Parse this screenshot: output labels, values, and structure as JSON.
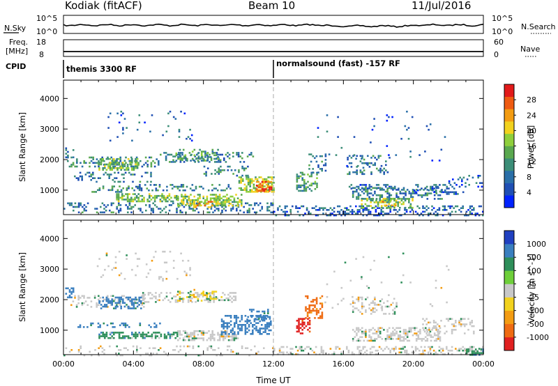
{
  "header": {
    "station": "Kodiak (fitACF)",
    "beam": "Beam 10",
    "date": "11/Jul/2016"
  },
  "nsky_panel": {
    "left_label": "N.Sky",
    "right_label": "N.Search",
    "left_ticks": [
      "10^5",
      "10^0"
    ],
    "right_ticks": [
      "10^5",
      "10^0"
    ]
  },
  "freq_panel": {
    "left_label_1": "Freq.",
    "left_label_2": "[MHz]",
    "right_label": "Nave",
    "left_ticks": [
      "18",
      "8"
    ],
    "right_ticks": [
      "60",
      "0"
    ]
  },
  "cpid": {
    "label": "CPID",
    "segments": [
      {
        "name": "themis 3300 RF",
        "start": "00:00"
      },
      {
        "name": "normalsound (fast) -157 RF",
        "start": "12:00"
      }
    ]
  },
  "colors": {
    "power": [
      "#0022ff",
      "#1f4fb4",
      "#2a6fa8",
      "#3c8e78",
      "#5aa84f",
      "#8fcf3c",
      "#f2d21e",
      "#f39c12",
      "#ef5b12",
      "#e21a1a"
    ],
    "velocity": [
      "#2040c0",
      "#3a7fbf",
      "#2e8f5a",
      "#6ecf3a",
      "#c8c8c8",
      "#f2d21e",
      "#f39c12",
      "#ef6b12",
      "#e02020"
    ]
  },
  "chart_data": [
    {
      "type": "heatmap",
      "name": "Power",
      "ylabel": "Slant Range [km]",
      "yticks": [
        1000,
        2000,
        3000,
        4000
      ],
      "ylim": [
        200,
        4600
      ],
      "xlim": [
        "00:00",
        "24:00"
      ],
      "colorbar_label": "Power [dB]",
      "colorbar_ticks": [
        "4",
        "8",
        "12",
        "16",
        "20",
        "24",
        "28"
      ],
      "colorbar_range": [
        0,
        30
      ],
      "regions": [
        {
          "t": [
            0.0,
            12.0
          ],
          "r": [
            300,
            600
          ],
          "v": 8,
          "density": 0.28
        },
        {
          "t": [
            12.0,
            24.0
          ],
          "r": [
            200,
            500
          ],
          "v": 6,
          "density": 0.35
        },
        {
          "t": [
            0.6,
            5.2
          ],
          "r": [
            1300,
            1600
          ],
          "v": 8,
          "density": 0.18
        },
        {
          "t": [
            0.1,
            0.6
          ],
          "r": [
            2100,
            2400
          ],
          "v": 8,
          "density": 0.45
        },
        {
          "t": [
            0.2,
            5.4
          ],
          "r": [
            1800,
            2100
          ],
          "v": 10,
          "density": 0.35
        },
        {
          "t": [
            2.0,
            4.2
          ],
          "r": [
            1650,
            2050
          ],
          "v": 14,
          "density": 0.5
        },
        {
          "t": [
            5.5,
            10.8
          ],
          "r": [
            1900,
            2250
          ],
          "v": 9,
          "density": 0.3
        },
        {
          "t": [
            6.4,
            8.8
          ],
          "r": [
            1950,
            2350
          ],
          "v": 12,
          "density": 0.38
        },
        {
          "t": [
            8.0,
            10.5
          ],
          "r": [
            1500,
            1800
          ],
          "v": 9,
          "density": 0.22
        },
        {
          "t": [
            10.0,
            12.0
          ],
          "r": [
            950,
            1450
          ],
          "v": 16,
          "density": 0.55
        },
        {
          "t": [
            11.0,
            11.9
          ],
          "r": [
            1000,
            1300
          ],
          "v": 26,
          "density": 0.5
        },
        {
          "t": [
            1.5,
            4.5
          ],
          "r": [
            950,
            1150
          ],
          "v": 10,
          "density": 0.35
        },
        {
          "t": [
            3.0,
            6.5
          ],
          "r": [
            620,
            900
          ],
          "v": 14,
          "density": 0.55
        },
        {
          "t": [
            6.5,
            10.2
          ],
          "r": [
            500,
            880
          ],
          "v": 16,
          "density": 0.55
        },
        {
          "t": [
            7.2,
            8.6
          ],
          "r": [
            450,
            650
          ],
          "v": 22,
          "density": 0.45
        },
        {
          "t": [
            4.0,
            9.5
          ],
          "r": [
            1000,
            1200
          ],
          "v": 8,
          "density": 0.3
        },
        {
          "t": [
            1.8,
            7.5
          ],
          "r": [
            2600,
            3600
          ],
          "v": 6,
          "density": 0.05
        },
        {
          "t": [
            13.3,
            14.5
          ],
          "r": [
            1000,
            1600
          ],
          "v": 12,
          "density": 0.45
        },
        {
          "t": [
            14.0,
            15.2
          ],
          "r": [
            1600,
            2200
          ],
          "v": 8,
          "density": 0.25
        },
        {
          "t": [
            16.2,
            18.6
          ],
          "r": [
            1550,
            2150
          ],
          "v": 8,
          "density": 0.2
        },
        {
          "t": [
            16.3,
            19.2
          ],
          "r": [
            1050,
            1200
          ],
          "v": 7,
          "density": 0.4
        },
        {
          "t": [
            16.5,
            21.6
          ],
          "r": [
            700,
            1100
          ],
          "v": 9,
          "density": 0.45
        },
        {
          "t": [
            17.0,
            20.0
          ],
          "r": [
            450,
            750
          ],
          "v": 15,
          "density": 0.5
        },
        {
          "t": [
            18.0,
            19.0
          ],
          "r": [
            500,
            650
          ],
          "v": 22,
          "density": 0.35
        },
        {
          "t": [
            20.0,
            22.8
          ],
          "r": [
            900,
            1200
          ],
          "v": 6,
          "density": 0.22
        },
        {
          "t": [
            22.0,
            23.9
          ],
          "r": [
            1100,
            1500
          ],
          "v": 6,
          "density": 0.18
        },
        {
          "t": [
            14.5,
            22.0
          ],
          "r": [
            1700,
            3600
          ],
          "v": 6,
          "density": 0.02
        }
      ]
    },
    {
      "type": "heatmap",
      "name": "Velocity",
      "ylabel": "Slant Range [km]",
      "xlabel": "Time UT",
      "yticks": [
        1000,
        2000,
        3000,
        4000
      ],
      "ylim": [
        200,
        4600
      ],
      "xlim": [
        "00:00",
        "24:00"
      ],
      "xticks": [
        "00:00",
        "04:00",
        "08:00",
        "12:00",
        "16:00",
        "20:00",
        "00:00"
      ],
      "colorbar_label": "Velocity [m s^-1]",
      "colorbar_ticks": [
        "-1000",
        "-500",
        "-100",
        "-25",
        "25",
        "100",
        "500",
        "1000"
      ],
      "colorbar_range": [
        -1250,
        1250
      ],
      "regions": [
        {
          "t": [
            0.0,
            12.0
          ],
          "r": [
            200,
            500
          ],
          "v": 0,
          "density": 0.12
        },
        {
          "t": [
            12.0,
            24.0
          ],
          "r": [
            200,
            480
          ],
          "v": 0,
          "density": 0.3
        },
        {
          "t": [
            0.1,
            0.6
          ],
          "r": [
            2100,
            2400
          ],
          "v": 300,
          "density": 0.45
        },
        {
          "t": [
            0.4,
            4.6
          ],
          "r": [
            1750,
            2150
          ],
          "v": 0,
          "density": 0.3
        },
        {
          "t": [
            2.0,
            4.4
          ],
          "r": [
            1700,
            2100
          ],
          "v": 300,
          "density": 0.45
        },
        {
          "t": [
            4.5,
            9.8
          ],
          "r": [
            1900,
            2250
          ],
          "v": 0,
          "density": 0.35
        },
        {
          "t": [
            6.5,
            9.0
          ],
          "r": [
            1950,
            2350
          ],
          "v": -50,
          "density": 0.3
        },
        {
          "t": [
            0.8,
            5.5
          ],
          "r": [
            1100,
            1250
          ],
          "v": 300,
          "density": 0.35
        },
        {
          "t": [
            2.0,
            6.5
          ],
          "r": [
            750,
            950
          ],
          "v": 150,
          "density": 0.55
        },
        {
          "t": [
            6.5,
            10.0
          ],
          "r": [
            650,
            1000
          ],
          "v": 0,
          "density": 0.55
        },
        {
          "t": [
            9.0,
            11.8
          ],
          "r": [
            900,
            1500
          ],
          "v": 500,
          "density": 0.5
        },
        {
          "t": [
            10.5,
            11.8
          ],
          "r": [
            1300,
            1700
          ],
          "v": 400,
          "density": 0.35
        },
        {
          "t": [
            1.8,
            7.5
          ],
          "r": [
            2600,
            3600
          ],
          "v": 0,
          "density": 0.05
        },
        {
          "t": [
            13.3,
            14.1
          ],
          "r": [
            900,
            1400
          ],
          "v": -900,
          "density": 0.55
        },
        {
          "t": [
            13.8,
            14.8
          ],
          "r": [
            1400,
            2200
          ],
          "v": -400,
          "density": 0.4
        },
        {
          "t": [
            16.5,
            19.0
          ],
          "r": [
            1550,
            2100
          ],
          "v": 0,
          "density": 0.22
        },
        {
          "t": [
            16.5,
            21.5
          ],
          "r": [
            650,
            1100
          ],
          "v": 0,
          "density": 0.5
        },
        {
          "t": [
            20.5,
            23.5
          ],
          "r": [
            900,
            1400
          ],
          "v": 0,
          "density": 0.25
        },
        {
          "t": [
            23.0,
            24.0
          ],
          "r": [
            200,
            400
          ],
          "v": 150,
          "density": 0.6
        },
        {
          "t": [
            14.5,
            22.0
          ],
          "r": [
            1700,
            3600
          ],
          "v": 0,
          "density": 0.02
        }
      ]
    }
  ]
}
